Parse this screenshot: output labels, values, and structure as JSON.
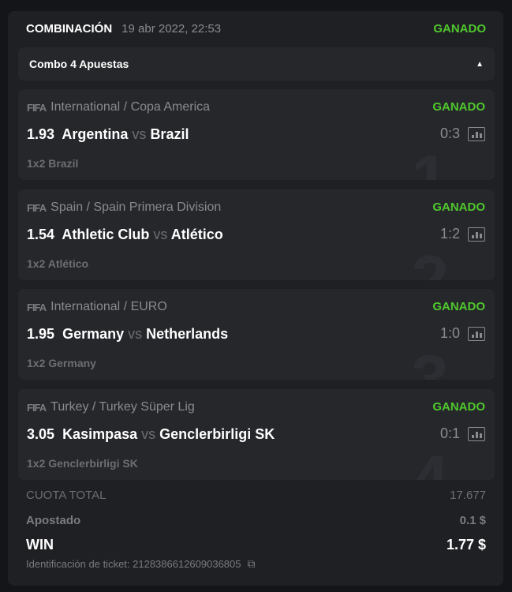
{
  "header": {
    "title": "COMBINACIÓN",
    "date": "19 abr 2022, 22:53",
    "status": "GANADO"
  },
  "combo": {
    "label": "Combo 4 Apuestas",
    "toggle_icon": "caret-up-icon"
  },
  "bets": [
    {
      "index": "1",
      "league": "International / Copa America",
      "status": "GANADO",
      "odds": "1.93",
      "home": "Argentina",
      "vs": "vs",
      "away": "Brazil",
      "score": "0:3",
      "market": "1x2 Brazil"
    },
    {
      "index": "2",
      "league": "Spain / Spain Primera Division",
      "status": "GANADO",
      "odds": "1.54",
      "home": "Athletic Club",
      "vs": "vs",
      "away": "Atlético",
      "score": "1:2",
      "market": "1x2 Atlético"
    },
    {
      "index": "3",
      "league": "International / EURO",
      "status": "GANADO",
      "odds": "1.95",
      "home": "Germany",
      "vs": "vs",
      "away": "Netherlands",
      "score": "1:0",
      "market": "1x2 Germany"
    },
    {
      "index": "4",
      "league": "Turkey / Turkey Süper Lig",
      "status": "GANADO",
      "odds": "3.05",
      "home": "Kasimpasa",
      "vs": "vs",
      "away": "Genclerbirligi SK",
      "score": "0:1",
      "market": "1x2 Genclerbirligi SK"
    }
  ],
  "sport_logo": "FIFA",
  "summary": {
    "total_odds_label": "CUOTA TOTAL",
    "total_odds": "17.677",
    "staked_label": "Apostado",
    "staked": "0.1 $",
    "win_label": "WIN",
    "win": "1.77 $",
    "ticket_label": "Identificación de ticket: 2128386612609036805"
  },
  "colors": {
    "win_green": "#4fc82d"
  }
}
